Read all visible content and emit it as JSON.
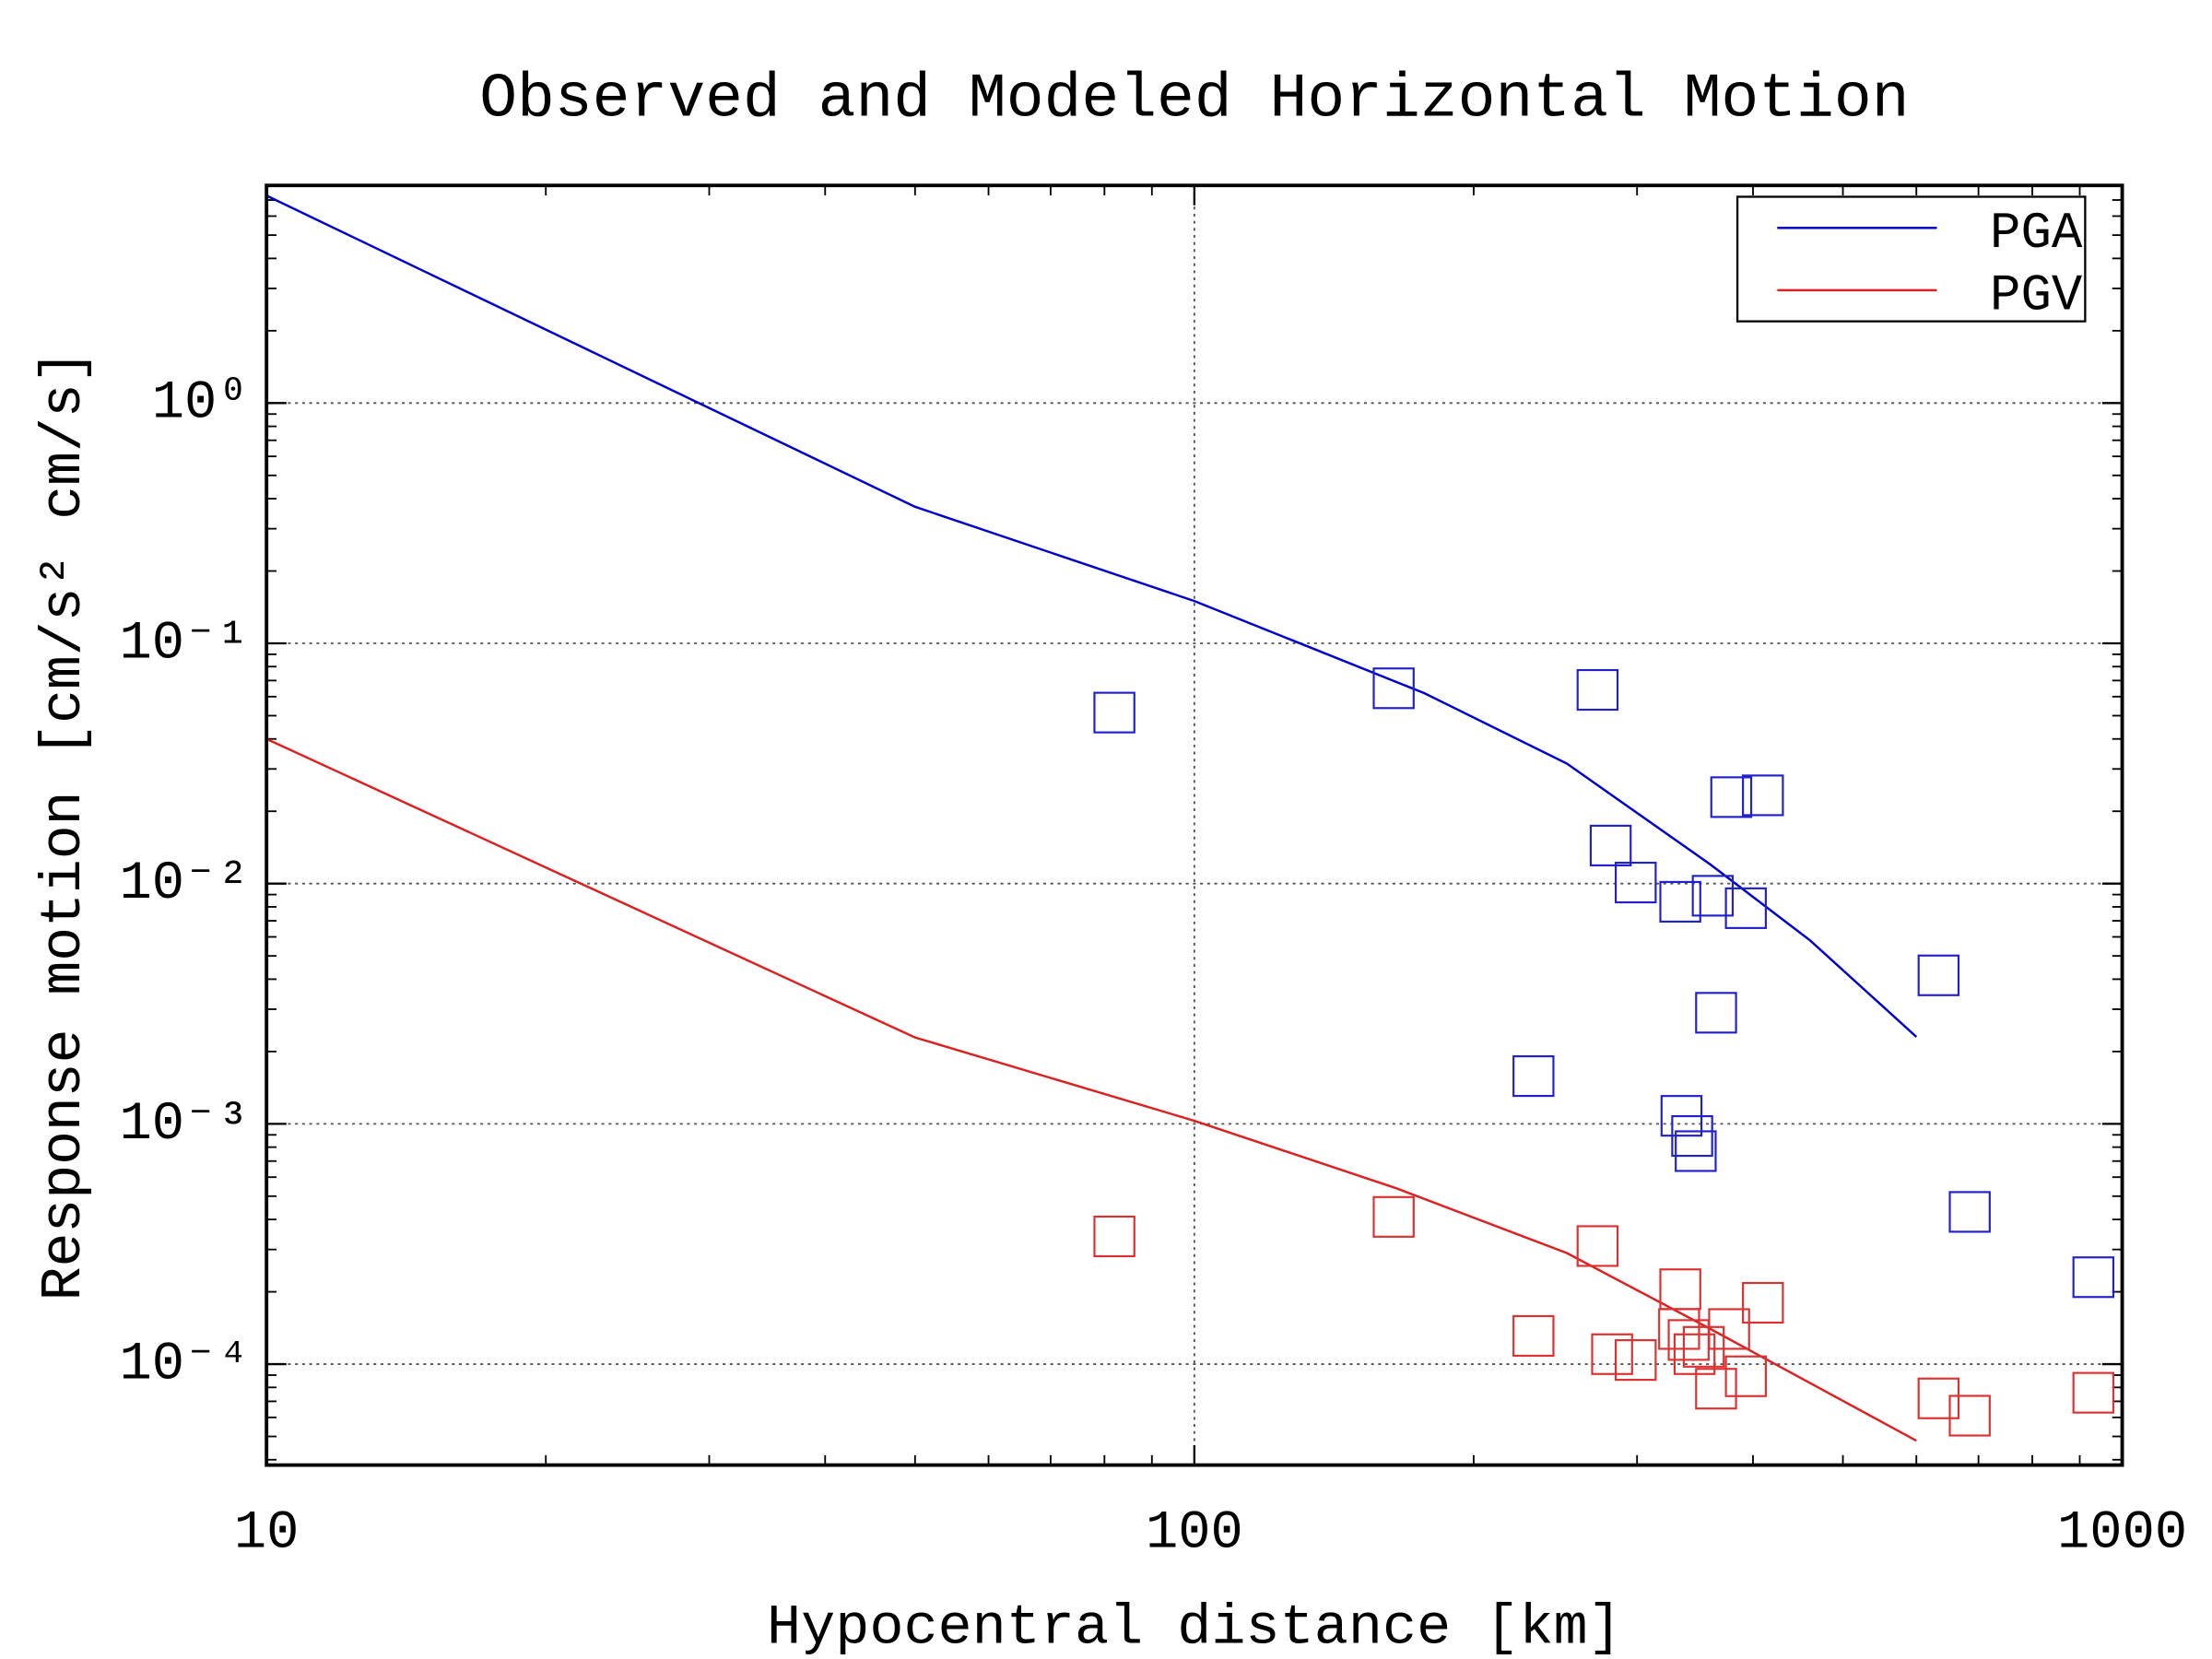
{
  "chart_data": {
    "type": "line",
    "title": "Observed and Modeled Horizontal Motion",
    "xlabel": "Hypocentral distance [km]",
    "ylabel": "Response motion [cm/s²  cm/s]",
    "xscale": "log",
    "yscale": "log",
    "xlim": [
      10,
      1000
    ],
    "ylim": [
      3.8e-05,
      8.05
    ],
    "xticks": [
      10,
      100,
      1000
    ],
    "yticks": [
      {
        "value": 1,
        "label": "10⁰"
      },
      {
        "value": 0.1,
        "label": "10⁻¹"
      },
      {
        "value": 0.01,
        "label": "10⁻²"
      },
      {
        "value": 0.001,
        "label": "10⁻³"
      },
      {
        "value": 0.0001,
        "label": "10⁻⁴"
      }
    ],
    "grid": true,
    "legend": "upper right",
    "series": [
      {
        "name": "PGA",
        "type": "line",
        "color": "#0000cc",
        "x": [
          10,
          50,
          100,
          177,
          252,
          360,
          461,
          600
        ],
        "values": [
          7.3,
          0.37,
          0.15,
          0.062,
          0.0316,
          0.012,
          0.0058,
          0.0023
        ]
      },
      {
        "name": "PGV",
        "type": "line",
        "color": "#dd2020",
        "x": [
          10,
          50,
          100,
          165,
          252,
          360,
          600
        ],
        "values": [
          0.04,
          0.00229,
          0.00103,
          0.00054,
          0.00029,
          0.00014,
          4.8e-05
        ]
      },
      {
        "type": "scatter",
        "color": "#2020cc",
        "x": [
          82,
          164,
          272,
          379,
          410,
          281,
          299,
          334,
          362,
          393,
          634,
          365,
          232,
          335,
          344,
          347,
          685,
          931
        ],
        "values": [
          0.0515,
          0.065,
          0.064,
          0.0229,
          0.0233,
          0.0144,
          0.0101,
          0.0084,
          0.0089,
          0.0079,
          0.00415,
          0.0029,
          0.00158,
          0.00108,
          0.00089,
          0.00077,
          0.00043,
          0.00023
        ]
      },
      {
        "type": "scatter",
        "color": "#dd3030",
        "x": [
          82,
          164,
          272,
          334,
          410,
          333,
          377,
          341,
          354,
          232,
          282,
          299,
          346,
          393,
          365,
          634,
          685,
          931
        ],
        "values": [
          0.00034,
          0.00041,
          0.00031,
          0.000205,
          0.00018,
          0.00014,
          0.00014,
          0.000126,
          0.000118,
          0.000131,
          0.00011,
          0.000104,
          0.00011,
          8.9e-05,
          7.9e-05,
          7.2e-05,
          6.1e-05,
          7.6e-05
        ]
      }
    ]
  }
}
